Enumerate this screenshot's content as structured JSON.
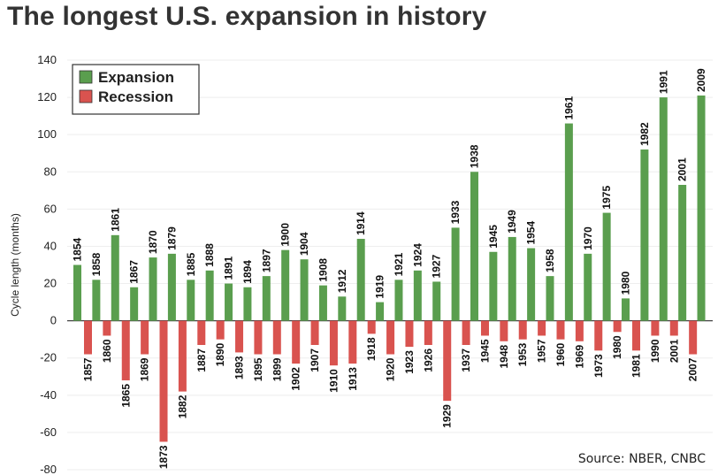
{
  "title": "The longest U.S. expansion in history",
  "source": "Source: NBER, CNBC",
  "colors": {
    "expansion": "#5a9e4e",
    "recession": "#d9534f",
    "grid": "#eeeeee"
  },
  "chart_data": {
    "type": "bar",
    "ylabel": "Cycle length (months)",
    "ylim": [
      -80,
      140
    ],
    "yticks": [
      140,
      120,
      100,
      80,
      60,
      40,
      20,
      0,
      -20,
      -40,
      -60,
      -80
    ],
    "legend": "top-left",
    "grid": true,
    "series": [
      {
        "name": "Expansion",
        "values": [
          {
            "label": "1854",
            "value": 30
          },
          {
            "label": "1858",
            "value": 22
          },
          {
            "label": "1861",
            "value": 46
          },
          {
            "label": "1867",
            "value": 18
          },
          {
            "label": "1870",
            "value": 34
          },
          {
            "label": "1879",
            "value": 36
          },
          {
            "label": "1885",
            "value": 22
          },
          {
            "label": "1888",
            "value": 27
          },
          {
            "label": "1891",
            "value": 20
          },
          {
            "label": "1894",
            "value": 18
          },
          {
            "label": "1897",
            "value": 24
          },
          {
            "label": "1900",
            "value": 38
          },
          {
            "label": "1904",
            "value": 33
          },
          {
            "label": "1908",
            "value": 19
          },
          {
            "label": "1912",
            "value": 13
          },
          {
            "label": "1914",
            "value": 44
          },
          {
            "label": "1919",
            "value": 10
          },
          {
            "label": "1921",
            "value": 22
          },
          {
            "label": "1924",
            "value": 27
          },
          {
            "label": "1927",
            "value": 21
          },
          {
            "label": "1933",
            "value": 50
          },
          {
            "label": "1938",
            "value": 80
          },
          {
            "label": "1945",
            "value": 37
          },
          {
            "label": "1949",
            "value": 45
          },
          {
            "label": "1954",
            "value": 39
          },
          {
            "label": "1958",
            "value": 24
          },
          {
            "label": "1961",
            "value": 106
          },
          {
            "label": "1970",
            "value": 36
          },
          {
            "label": "1975",
            "value": 58
          },
          {
            "label": "1980",
            "value": 12
          },
          {
            "label": "1982",
            "value": 92
          },
          {
            "label": "1991",
            "value": 120
          },
          {
            "label": "2001",
            "value": 73
          },
          {
            "label": "2009",
            "value": 121
          }
        ]
      },
      {
        "name": "Recession",
        "values": [
          {
            "label": "1857",
            "value": -18
          },
          {
            "label": "1860",
            "value": -8
          },
          {
            "label": "1865",
            "value": -32
          },
          {
            "label": "1869",
            "value": -18
          },
          {
            "label": "1873",
            "value": -65
          },
          {
            "label": "1882",
            "value": -38
          },
          {
            "label": "1887",
            "value": -13
          },
          {
            "label": "1890",
            "value": -10
          },
          {
            "label": "1893",
            "value": -17
          },
          {
            "label": "1895",
            "value": -18
          },
          {
            "label": "1899",
            "value": -18
          },
          {
            "label": "1902",
            "value": -23
          },
          {
            "label": "1907",
            "value": -13
          },
          {
            "label": "1910",
            "value": -24
          },
          {
            "label": "1913",
            "value": -23
          },
          {
            "label": "1918",
            "value": -7
          },
          {
            "label": "1920",
            "value": -18
          },
          {
            "label": "1923",
            "value": -14
          },
          {
            "label": "1926",
            "value": -13
          },
          {
            "label": "1929",
            "value": -43
          },
          {
            "label": "1937",
            "value": -13
          },
          {
            "label": "1945",
            "value": -8
          },
          {
            "label": "1948",
            "value": -11
          },
          {
            "label": "1953",
            "value": -10
          },
          {
            "label": "1957",
            "value": -8
          },
          {
            "label": "1960",
            "value": -10
          },
          {
            "label": "1969",
            "value": -11
          },
          {
            "label": "1973",
            "value": -16
          },
          {
            "label": "1980",
            "value": -6
          },
          {
            "label": "1981",
            "value": -16
          },
          {
            "label": "1990",
            "value": -8
          },
          {
            "label": "2001",
            "value": -8
          },
          {
            "label": "2007",
            "value": -18
          }
        ]
      }
    ]
  }
}
